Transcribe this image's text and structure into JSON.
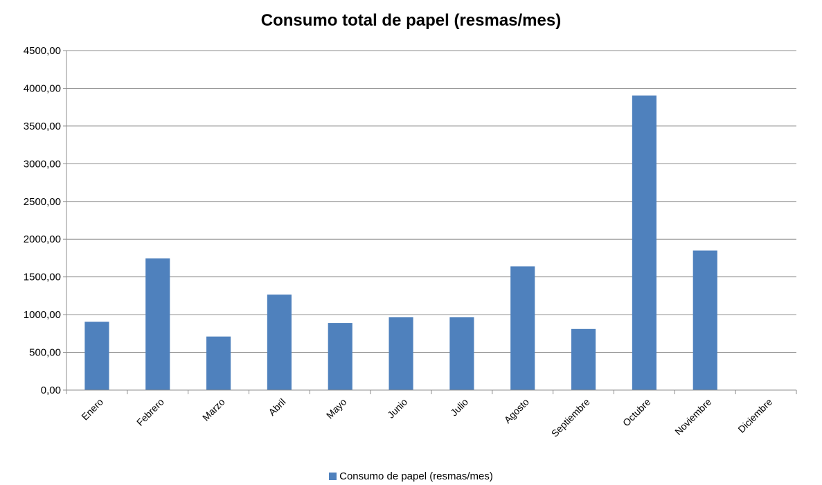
{
  "chart_data": {
    "type": "bar",
    "title": "Consumo total de papel (resmas/mes)",
    "xlabel": "",
    "ylabel": "",
    "categories": [
      "Enero",
      "Febrero",
      "Marzo",
      "Abril",
      "Mayo",
      "Junio",
      "Julio",
      "Agosto",
      "Septiembre",
      "Octubre",
      "Noviembre",
      "Diciembre"
    ],
    "series": [
      {
        "name": "Consumo de papel (resmas/mes)",
        "color": "#4f81bd",
        "values": [
          905,
          1745,
          710,
          1265,
          890,
          965,
          965,
          1640,
          810,
          3905,
          1850,
          0
        ]
      }
    ],
    "ylim": [
      0,
      4500
    ],
    "yticks": [
      "0,00",
      "500,00",
      "1000,00",
      "1500,00",
      "2000,00",
      "2500,00",
      "3000,00",
      "3500,00",
      "4000,00",
      "4500,00"
    ],
    "grid": true,
    "legend_position": "bottom"
  }
}
